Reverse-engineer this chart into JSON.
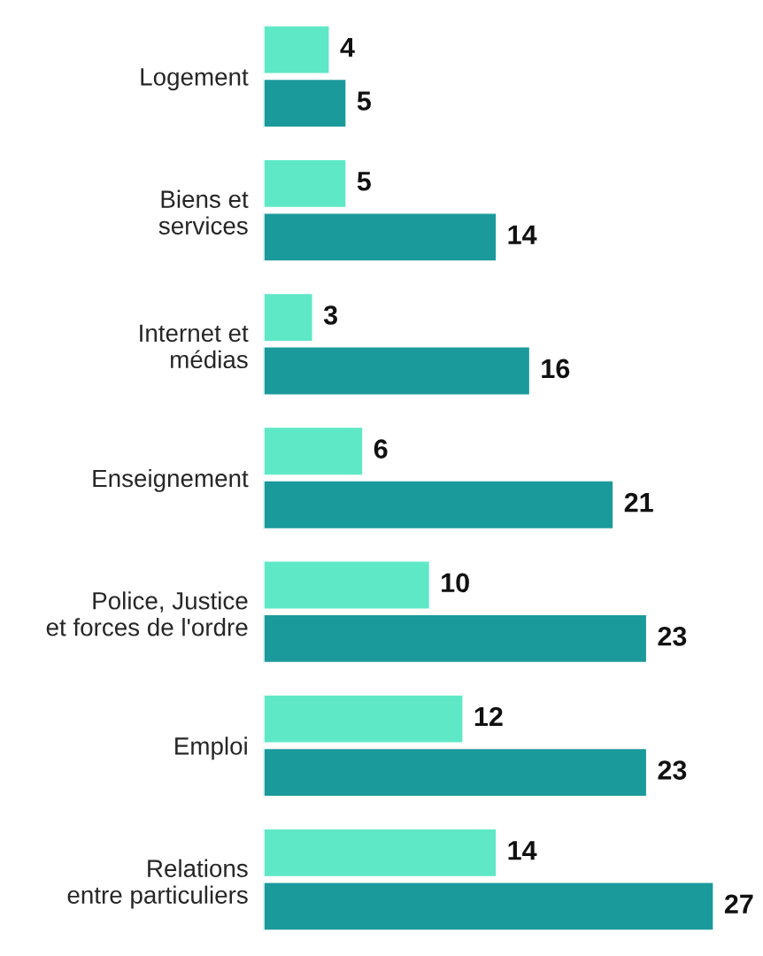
{
  "chart_data": {
    "type": "bar",
    "orientation": "horizontal",
    "categories": [
      "Logement",
      "Biens et\nservices",
      "Internet et\nmédias",
      "Enseignement",
      "Police, Justice\net forces de l'ordre",
      "Emploi",
      "Relations\nentre particuliers"
    ],
    "series": [
      {
        "color": "#5ee8c6",
        "values": [
          4,
          5,
          3,
          6,
          10,
          12,
          14
        ]
      },
      {
        "color": "#1b9a9c",
        "values": [
          5,
          14,
          16,
          21,
          23,
          23,
          27
        ]
      }
    ],
    "data_labels": true,
    "tick_labels": "y",
    "grid": false,
    "legend": false
  }
}
